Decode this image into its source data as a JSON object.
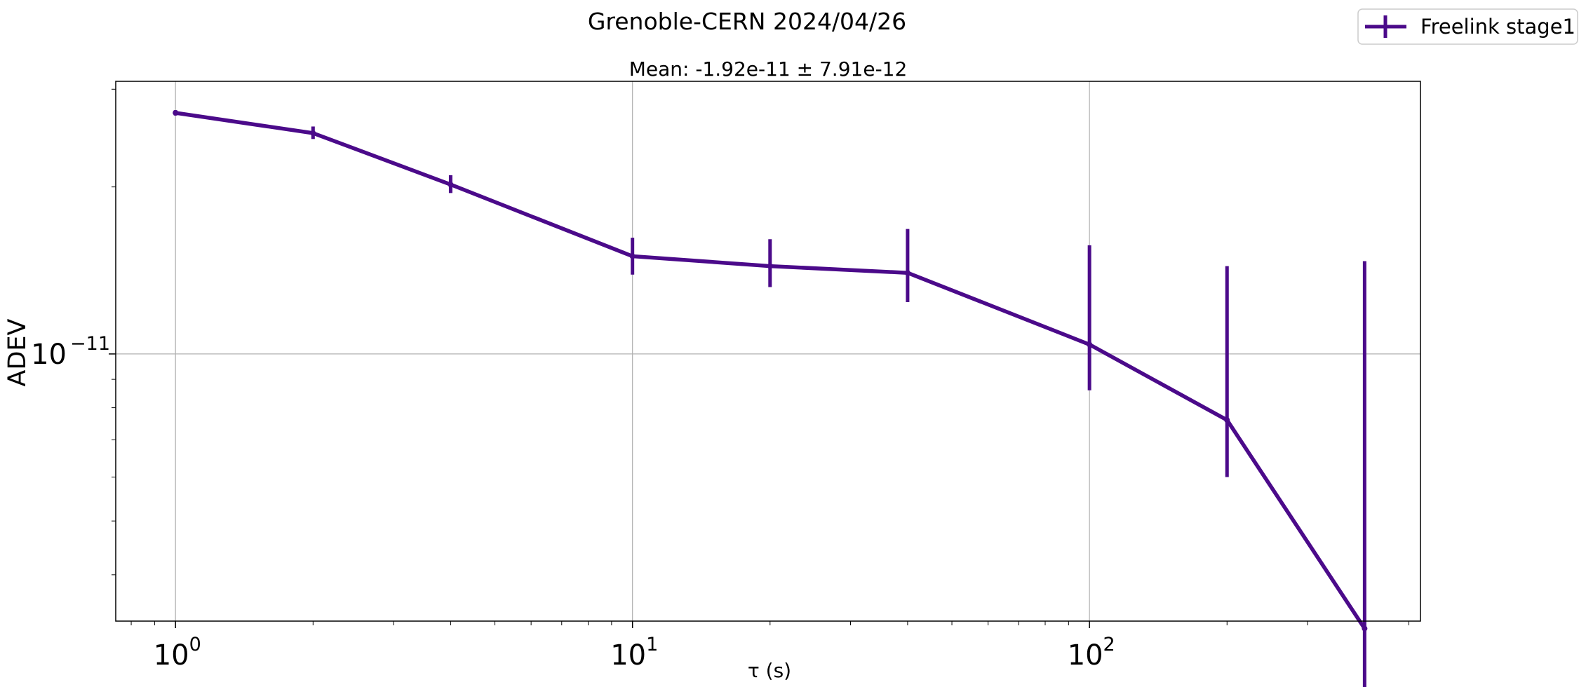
{
  "figure": {
    "title": "Grenoble-CERN 2024/04/26"
  },
  "chart_data": {
    "type": "line",
    "title": "Mean: -1.92e-11 ± 7.91e-12",
    "xlabel": "τ (s)",
    "ylabel": "ADEV",
    "xscale": "log",
    "yscale": "log",
    "xlim": [
      0.74,
      530
    ],
    "ylim": [
      3.3e-12,
      3.1e-11
    ],
    "grid": true,
    "legend_position": "top-right",
    "x_ticks": [
      {
        "base": "10",
        "exp": "0",
        "value": 1
      },
      {
        "base": "10",
        "exp": "1",
        "value": 10
      },
      {
        "base": "10",
        "exp": "2",
        "value": 100
      }
    ],
    "y_ticks": [
      {
        "base": "10",
        "exp": "−11",
        "value": 1e-11
      }
    ],
    "series": [
      {
        "name": "Freelink stage1",
        "color": "#4b0a8a",
        "x": [
          1,
          2,
          4,
          10,
          20,
          40,
          100,
          200,
          400
        ],
        "y": [
          2.72e-11,
          2.5e-11,
          2.02e-11,
          1.5e-11,
          1.44e-11,
          1.4e-11,
          1.04e-11,
          7.6e-12,
          3.2e-12
        ],
        "err_low": [
          2.69e-11,
          2.44e-11,
          1.95e-11,
          1.39e-11,
          1.32e-11,
          1.24e-11,
          8.6e-12,
          6e-12,
          2.25e-12
        ],
        "err_high": [
          2.75e-11,
          2.57e-11,
          2.1e-11,
          1.62e-11,
          1.61e-11,
          1.68e-11,
          1.57e-11,
          1.44e-11,
          1.47e-11
        ]
      }
    ]
  }
}
